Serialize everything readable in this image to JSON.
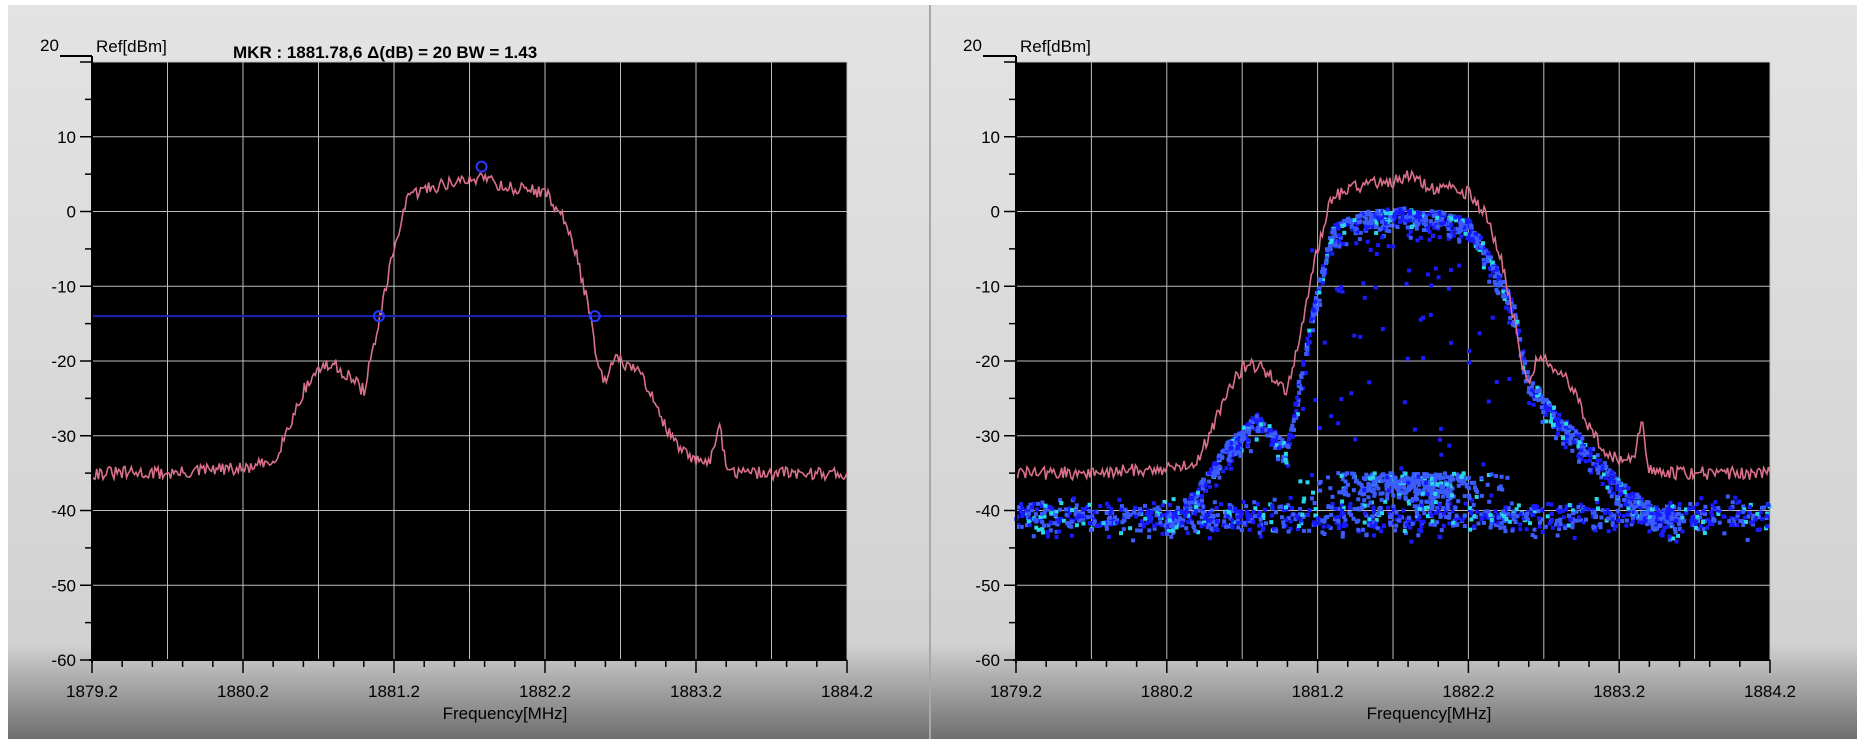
{
  "colors": {
    "panel_bg": "#e1e1e1",
    "panel_bottom": "#6e6e6e",
    "plot_bg": "#000000",
    "grid": "#bdbdbd",
    "trace": "#d9708a",
    "marker_line": "#1d22b8",
    "marker_circle": "#2a38ff",
    "density_low": "#1a1aff",
    "density_mid": "#3a5cff",
    "density_high": "#28d8e8"
  },
  "charts": [
    {
      "ref_top_label": "20",
      "ref_unit_label": "Ref[dBm]",
      "marker_text": "MKR : 1881.78,6  Δ(dB) = 20  BW = 1.43",
      "xlabel": "Frequency[MHz]",
      "y_tick_labels": [
        "10",
        "0",
        "-10",
        "-20",
        "-30",
        "-40",
        "-50",
        "-60"
      ],
      "x_tick_labels": [
        "1879.2",
        "1880.2",
        "1881.2",
        "1882.2",
        "1883.2",
        "1884.2"
      ]
    },
    {
      "ref_top_label": "20",
      "ref_unit_label": "Ref[dBm]",
      "marker_text": "",
      "xlabel": "Frequency[MHz]",
      "y_tick_labels": [
        "10",
        "0",
        "-10",
        "-20",
        "-30",
        "-40",
        "-50",
        "-60"
      ],
      "x_tick_labels": [
        "1879.2",
        "1880.2",
        "1881.2",
        "1882.2",
        "1883.2",
        "1884.2"
      ]
    }
  ],
  "chart_data": [
    {
      "type": "line",
      "xlabel": "Frequency[MHz]",
      "ylabel": "Ref[dBm]",
      "xlim": [
        1879.2,
        1884.2
      ],
      "ylim": [
        -60,
        20
      ],
      "grid": true,
      "series": [
        {
          "x": [
            1879.2,
            1879.4,
            1879.6,
            1879.8,
            1880.0,
            1880.2,
            1880.4,
            1880.5,
            1880.6,
            1880.7,
            1880.8,
            1880.9,
            1881.0,
            1881.1,
            1881.2,
            1881.25,
            1881.3,
            1881.4,
            1881.5,
            1881.6,
            1881.7,
            1881.8,
            1881.9,
            1882.0,
            1882.1,
            1882.2,
            1882.3,
            1882.4,
            1882.5,
            1882.55,
            1882.6,
            1882.65,
            1882.7,
            1882.8,
            1882.9,
            1883.0,
            1883.1,
            1883.2,
            1883.3,
            1883.35,
            1883.4,
            1883.5,
            1883.6,
            1883.8,
            1884.0,
            1884.2
          ],
          "y": [
            -35,
            -35,
            -35,
            -35,
            -34.5,
            -34.5,
            -33.5,
            -29,
            -24,
            -21,
            -20.5,
            -22,
            -24,
            -15,
            -5,
            -1,
            2,
            3,
            3.5,
            4,
            4,
            5,
            3.5,
            3,
            3,
            2.5,
            0,
            -5,
            -14,
            -21,
            -23,
            -20,
            -20,
            -21,
            -24,
            -29,
            -32,
            -33.5,
            -33,
            -28,
            -34.5,
            -35,
            -35,
            -35,
            -35,
            -35
          ]
        }
      ],
      "markers": [
        {
          "x": 1881.78,
          "y": 6
        },
        {
          "x": 1881.1,
          "y": -14
        },
        {
          "x": 1882.53,
          "y": -14
        }
      ],
      "threshold_y": -14
    },
    {
      "type": "scatter",
      "xlabel": "Frequency[MHz]",
      "ylabel": "Ref[dBm]",
      "xlim": [
        1879.2,
        1884.2
      ],
      "ylim": [
        -60,
        20
      ],
      "grid": true,
      "series": [
        {
          "x": [
            1879.2,
            1879.4,
            1879.6,
            1879.8,
            1880.0,
            1880.2,
            1880.4,
            1880.5,
            1880.6,
            1880.7,
            1880.8,
            1880.9,
            1881.0,
            1881.1,
            1881.2,
            1881.25,
            1881.3,
            1881.4,
            1881.5,
            1881.6,
            1881.7,
            1881.8,
            1881.9,
            1882.0,
            1882.1,
            1882.2,
            1882.3,
            1882.4,
            1882.5,
            1882.55,
            1882.6,
            1882.65,
            1882.7,
            1882.8,
            1882.9,
            1883.0,
            1883.1,
            1883.2,
            1883.3,
            1883.35,
            1883.4,
            1883.5,
            1883.6,
            1883.8,
            1884.0,
            1884.2
          ],
          "y": [
            -35,
            -35,
            -35,
            -35,
            -34.5,
            -34.5,
            -33.5,
            -29,
            -24,
            -21,
            -20.5,
            -22,
            -24,
            -15,
            -5,
            -1,
            2,
            3,
            3.5,
            4,
            4,
            5,
            3.5,
            3,
            3,
            2.5,
            0,
            -5,
            -14,
            -21,
            -23,
            -20,
            -20,
            -21,
            -24,
            -29,
            -32,
            -33.5,
            -33,
            -28,
            -34.5,
            -35,
            -35,
            -35,
            -35,
            -35
          ]
        }
      ],
      "density": {
        "noise_floor_y": -41,
        "envelope_x": [
          1880.2,
          1880.4,
          1880.6,
          1880.8,
          1881.0,
          1881.1,
          1881.2,
          1881.3,
          1881.5,
          1881.8,
          1882.0,
          1882.2,
          1882.3,
          1882.5,
          1882.6,
          1882.8,
          1883.0,
          1883.2,
          1883.4,
          1883.6
        ],
        "envelope_y": [
          -41,
          -37,
          -31,
          -27,
          -31,
          -20,
          -10,
          -2,
          0,
          0.5,
          0,
          -1,
          -4,
          -12,
          -22,
          -27,
          -31,
          -36,
          -39,
          -41
        ],
        "hump_center_x": 1881.8,
        "hump_peak_y": -35
      }
    }
  ]
}
